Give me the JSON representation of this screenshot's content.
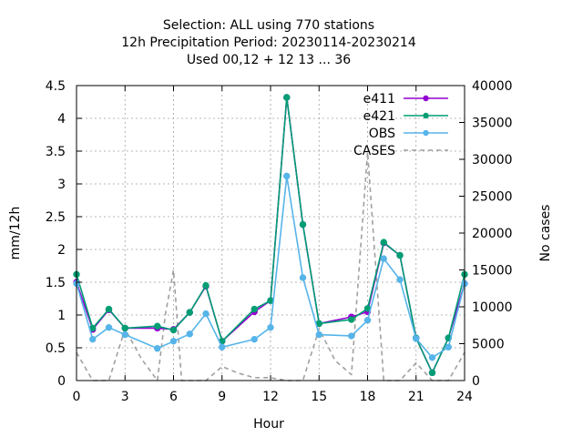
{
  "chart_data": {
    "type": "line",
    "title": [
      "Selection: ALL using    770 stations",
      "12h Precipitation    Period: 20230114-20230214",
      "Used  00,12  + 12 13 ... 36"
    ],
    "xlabel": "Hour",
    "ylabel": "mm/12h",
    "y2label": "No cases",
    "xlim": [
      0,
      24
    ],
    "ylim": [
      0,
      4.5
    ],
    "y2lim": [
      0,
      40000
    ],
    "xticks": [
      "0",
      "3",
      "6",
      "9",
      "12",
      "15",
      "18",
      "21",
      "24"
    ],
    "yticks": [
      "0",
      "0.5",
      "1",
      "1.5",
      "2",
      "2.5",
      "3",
      "3.5",
      "4",
      "4.5"
    ],
    "y2ticks": [
      "0",
      "5000",
      "10000",
      "15000",
      "20000",
      "25000",
      "30000",
      "35000",
      "40000"
    ],
    "grid": true,
    "legend_position": "top-right",
    "series": [
      {
        "name": "e411",
        "color": "#9400d3",
        "axis": "y",
        "dash": false,
        "marker": "circle",
        "x": [
          0,
          1,
          2,
          3,
          5,
          6,
          7,
          8,
          9,
          11,
          12,
          13,
          14,
          15,
          17,
          18,
          19,
          20,
          21,
          22,
          23,
          24
        ],
        "y": [
          1.5,
          0.78,
          1.08,
          0.8,
          0.8,
          0.78,
          1.04,
          1.44,
          0.6,
          1.05,
          1.22,
          4.32,
          2.38,
          0.87,
          0.97,
          1.05,
          2.1,
          1.91,
          0.65,
          0.12,
          0.65,
          1.48
        ]
      },
      {
        "name": "e421",
        "color": "#009e73",
        "axis": "y",
        "dash": false,
        "marker": "circle",
        "x": [
          0,
          1,
          2,
          3,
          5,
          6,
          7,
          8,
          9,
          11,
          12,
          13,
          14,
          15,
          17,
          18,
          19,
          20,
          21,
          22,
          23,
          24
        ],
        "y": [
          1.62,
          0.8,
          1.09,
          0.8,
          0.83,
          0.77,
          1.04,
          1.45,
          0.6,
          1.09,
          1.22,
          4.32,
          2.38,
          0.87,
          0.93,
          1.1,
          2.11,
          1.91,
          0.65,
          0.12,
          0.65,
          1.62
        ]
      },
      {
        "name": "OBS",
        "color": "#56b4e9",
        "axis": "y",
        "dash": false,
        "marker": "circle",
        "x": [
          0,
          1,
          2,
          3,
          5,
          6,
          7,
          8,
          9,
          11,
          12,
          13,
          14,
          15,
          17,
          18,
          19,
          20,
          21,
          22,
          23,
          24
        ],
        "y": [
          1.48,
          0.63,
          0.81,
          0.7,
          0.49,
          0.6,
          0.71,
          1.02,
          0.51,
          0.63,
          0.81,
          3.12,
          1.57,
          0.7,
          0.68,
          0.92,
          1.86,
          1.54,
          0.64,
          0.35,
          0.51,
          1.48
        ]
      },
      {
        "name": "CASES",
        "color": "#a0a0a0",
        "axis": "y2",
        "dash": true,
        "marker": "none",
        "x": [
          0,
          1,
          2,
          3,
          4,
          5,
          5.5,
          6,
          6.5,
          7,
          8,
          9,
          10,
          11,
          12,
          13,
          14,
          15,
          16,
          17,
          18,
          19,
          20,
          21,
          22,
          23,
          24
        ],
        "y": [
          3800,
          0,
          0,
          7000,
          3000,
          0,
          9000,
          15000,
          0,
          0,
          0,
          1900,
          1000,
          400,
          400,
          0,
          0,
          7000,
          2700,
          800,
          31000,
          0,
          0,
          2400,
          0,
          0,
          3800
        ]
      }
    ]
  }
}
